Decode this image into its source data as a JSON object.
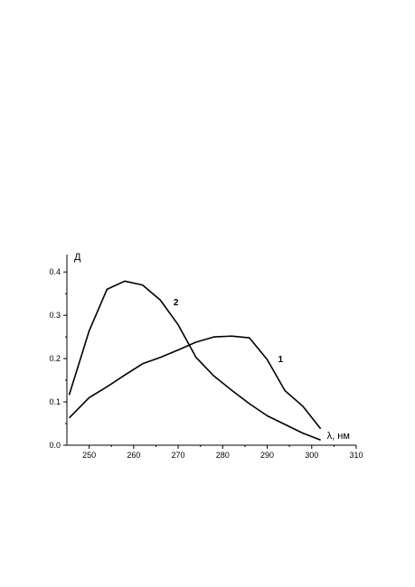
{
  "chart_data": {
    "type": "line",
    "ylabel": "Д",
    "xlabel": "λ, нм",
    "xlim": [
      245,
      310
    ],
    "ylim": [
      0,
      0.44
    ],
    "x_ticks": [
      250,
      260,
      270,
      280,
      290,
      300,
      310
    ],
    "y_ticks": [
      0.0,
      0.1,
      0.2,
      0.3,
      0.4
    ],
    "x_tick_labels": [
      "250",
      "260",
      "270",
      "280",
      "290",
      "300",
      "310"
    ],
    "y_tick_labels": [
      "0.0",
      "0.1",
      "0.2",
      "0.3",
      "0.4"
    ],
    "grid": false,
    "series": [
      {
        "name": "1",
        "x": [
          245.5,
          250,
          254,
          258,
          262,
          266,
          270,
          274,
          278,
          282,
          286,
          290,
          294,
          298,
          302
        ],
        "y": [
          0.063,
          0.11,
          0.135,
          0.162,
          0.188,
          0.203,
          0.22,
          0.238,
          0.25,
          0.252,
          0.248,
          0.198,
          0.126,
          0.09,
          0.038
        ]
      },
      {
        "name": "2",
        "x": [
          245.5,
          250,
          254,
          258,
          262,
          266,
          270,
          274,
          278,
          282,
          286,
          290,
          294,
          298,
          302
        ],
        "y": [
          0.116,
          0.264,
          0.36,
          0.379,
          0.37,
          0.335,
          0.278,
          0.203,
          0.16,
          0.127,
          0.096,
          0.068,
          0.048,
          0.028,
          0.012
        ]
      }
    ],
    "annotations": [
      {
        "text": "1",
        "x": 293,
        "y": 0.192
      },
      {
        "text": "2",
        "x": 269.5,
        "y": 0.323
      }
    ]
  }
}
